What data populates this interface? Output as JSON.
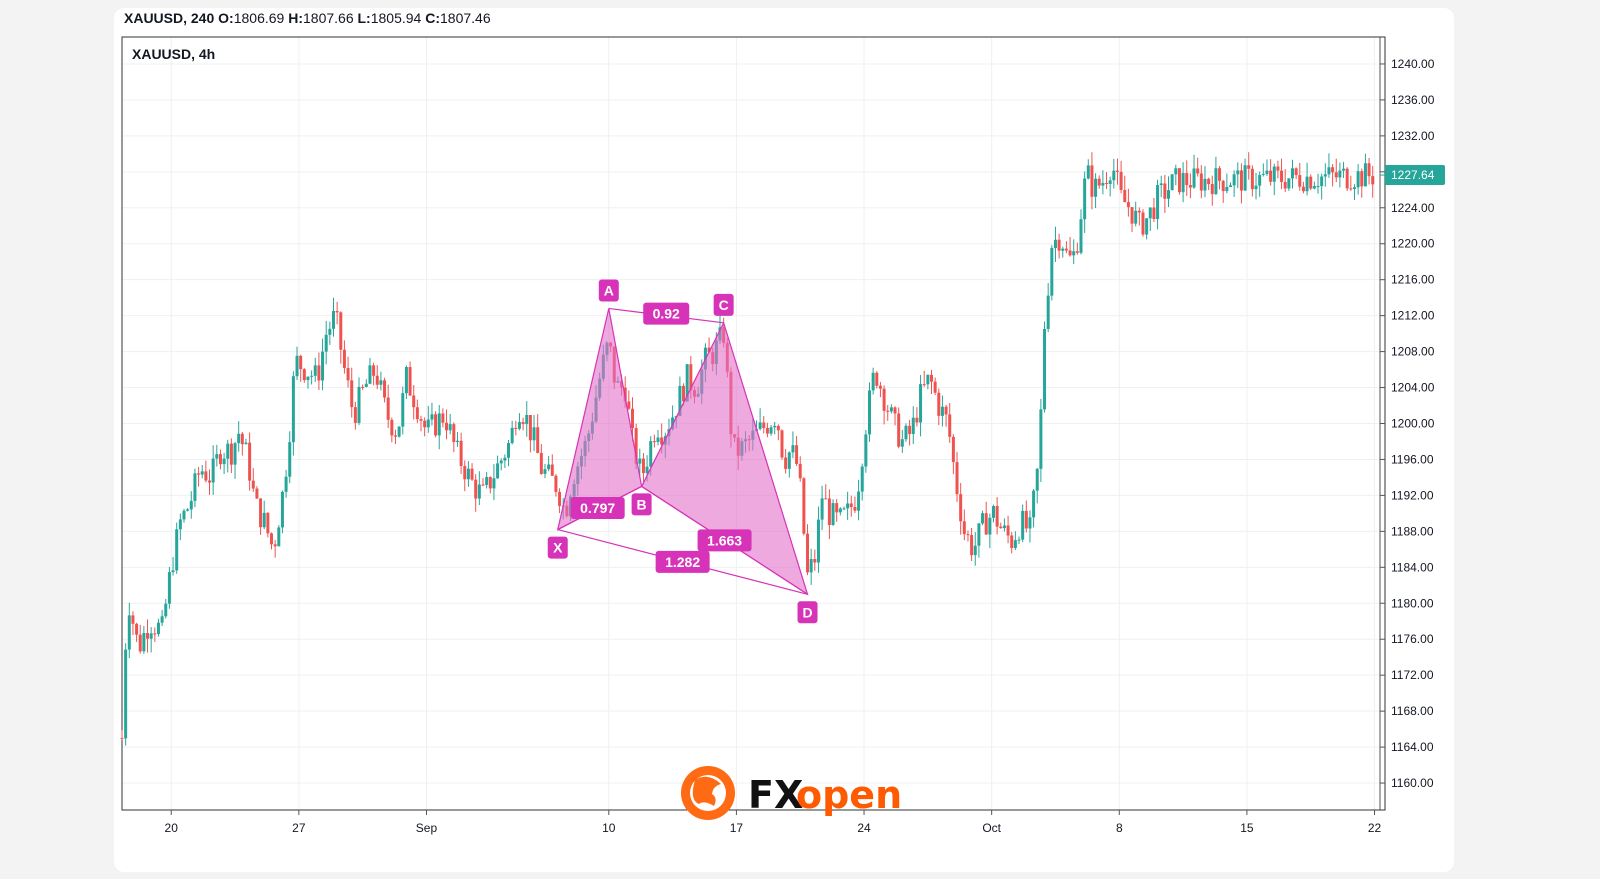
{
  "header": {
    "symbol_line": "XAUUSD, 240",
    "o_label": "O:",
    "o_value": "1806.69",
    "h_label": "H:",
    "h_value": "1807.66",
    "l_label": "L:",
    "l_value": "1805.94",
    "c_label": "C:",
    "c_value": "1807.46"
  },
  "chart_title": "XAUUSD, 4h",
  "brand": {
    "fx": "FX",
    "open": "open",
    "accent": "#ff5a00",
    "dark": "#111111"
  },
  "colors": {
    "up": "#26a69a",
    "down": "#ef5350",
    "pattern": "#d633b8",
    "pattern_fill": "#e26fc8",
    "price_tag": "#26a69a"
  },
  "chart_data": {
    "type": "candlestick",
    "title": "XAUUSD, 4h",
    "ylim": [
      1157,
      1243
    ],
    "y_ticks": [
      "1240.00",
      "1236.00",
      "1232.00",
      "1228.00",
      "1224.00",
      "1220.00",
      "1216.00",
      "1212.00",
      "1208.00",
      "1204.00",
      "1200.00",
      "1196.00",
      "1192.00",
      "1188.00",
      "1184.00",
      "1180.00",
      "1176.00",
      "1172.00",
      "1168.00",
      "1164.00",
      "1160.00"
    ],
    "x_ticks": [
      {
        "label": "20",
        "day": 20
      },
      {
        "label": "27",
        "day": 27
      },
      {
        "label": "Sep",
        "day": 34
      },
      {
        "label": "10",
        "day": 44
      },
      {
        "label": "17",
        "day": 51
      },
      {
        "label": "24",
        "day": 58
      },
      {
        "label": "Oct",
        "day": 65
      },
      {
        "label": "8",
        "day": 72
      },
      {
        "label": "15",
        "day": 79
      },
      {
        "label": "22",
        "day": 86
      }
    ],
    "x_range_days": [
      17.3,
      86.3
    ],
    "last_price": "1227.64",
    "last_price_value": 1227.64,
    "grid": true,
    "harmonic_pattern": {
      "points": [
        {
          "label": "X",
          "day": 41.2,
          "price": 1188.2
        },
        {
          "label": "A",
          "day": 44.0,
          "price": 1212.8
        },
        {
          "label": "B",
          "day": 45.8,
          "price": 1193.0
        },
        {
          "label": "C",
          "day": 50.3,
          "price": 1211.2
        },
        {
          "label": "D",
          "day": 54.9,
          "price": 1181.0
        }
      ],
      "ratios": [
        {
          "value": "0.92",
          "from": "A",
          "to": "C"
        },
        {
          "value": "0.797",
          "from": "X",
          "to": "B"
        },
        {
          "value": "1.663",
          "from": "B",
          "to": "D"
        },
        {
          "value": "1.282",
          "from": "X",
          "to": "D"
        }
      ]
    },
    "price_path": [
      [
        17.3,
        1165
      ],
      [
        17.6,
        1181
      ],
      [
        18.2,
        1175
      ],
      [
        18.8,
        1178
      ],
      [
        19.5,
        1177
      ],
      [
        20.0,
        1184
      ],
      [
        20.5,
        1189
      ],
      [
        21.0,
        1191
      ],
      [
        21.6,
        1195
      ],
      [
        22.2,
        1194
      ],
      [
        22.7,
        1197
      ],
      [
        23.3,
        1197
      ],
      [
        23.7,
        1199
      ],
      [
        24.2,
        1196
      ],
      [
        24.6,
        1191
      ],
      [
        25.1,
        1189
      ],
      [
        25.6,
        1186
      ],
      [
        26.1,
        1192
      ],
      [
        26.4,
        1197
      ],
      [
        26.8,
        1207
      ],
      [
        27.4,
        1206
      ],
      [
        28.0,
        1205
      ],
      [
        28.5,
        1210
      ],
      [
        29.0,
        1212
      ],
      [
        29.5,
        1206
      ],
      [
        30.0,
        1201
      ],
      [
        30.6,
        1204
      ],
      [
        31.2,
        1206
      ],
      [
        31.8,
        1201
      ],
      [
        32.4,
        1199
      ],
      [
        32.9,
        1205
      ],
      [
        33.5,
        1202
      ],
      [
        34.0,
        1199
      ],
      [
        34.5,
        1200
      ],
      [
        35.0,
        1201
      ],
      [
        35.6,
        1197
      ],
      [
        36.1,
        1195
      ],
      [
        36.6,
        1193
      ],
      [
        37.1,
        1192
      ],
      [
        37.6,
        1194
      ],
      [
        38.1,
        1196
      ],
      [
        38.6,
        1198
      ],
      [
        39.0,
        1202
      ],
      [
        39.4,
        1201
      ],
      [
        39.9,
        1198
      ],
      [
        40.3,
        1195
      ],
      [
        40.7,
        1194
      ],
      [
        41.2,
        1193
      ],
      [
        41.6,
        1190
      ],
      [
        42.0,
        1194
      ],
      [
        42.4,
        1196
      ],
      [
        42.8,
        1198
      ],
      [
        43.2,
        1202
      ],
      [
        43.6,
        1206
      ],
      [
        44.0,
        1209
      ],
      [
        44.4,
        1204
      ],
      [
        44.9,
        1204
      ],
      [
        45.3,
        1198
      ],
      [
        45.8,
        1194
      ],
      [
        46.2,
        1197
      ],
      [
        46.6,
        1200
      ],
      [
        47.0,
        1199
      ],
      [
        47.5,
        1201
      ],
      [
        47.9,
        1203
      ],
      [
        48.3,
        1205
      ],
      [
        48.8,
        1204
      ],
      [
        49.3,
        1207
      ],
      [
        49.8,
        1208
      ],
      [
        50.3,
        1210
      ],
      [
        50.8,
        1197
      ],
      [
        51.2,
        1197
      ],
      [
        51.7,
        1198
      ],
      [
        52.2,
        1199
      ],
      [
        52.7,
        1200
      ],
      [
        53.2,
        1201
      ],
      [
        53.6,
        1196
      ],
      [
        54.0,
        1197
      ],
      [
        54.4,
        1195
      ],
      [
        54.9,
        1183
      ],
      [
        55.3,
        1185
      ],
      [
        55.7,
        1192
      ],
      [
        56.1,
        1190
      ],
      [
        56.6,
        1189
      ],
      [
        57.1,
        1190
      ],
      [
        57.6,
        1192
      ],
      [
        58.1,
        1200
      ],
      [
        58.6,
        1206
      ],
      [
        59.1,
        1203
      ],
      [
        59.6,
        1200
      ],
      [
        60.1,
        1198
      ],
      [
        60.6,
        1199
      ],
      [
        61.1,
        1203
      ],
      [
        61.6,
        1205
      ],
      [
        62.1,
        1202
      ],
      [
        62.6,
        1200
      ],
      [
        63.0,
        1194
      ],
      [
        63.5,
        1188
      ],
      [
        64.0,
        1186
      ],
      [
        64.6,
        1189
      ],
      [
        65.1,
        1190
      ],
      [
        65.6,
        1188
      ],
      [
        66.1,
        1187
      ],
      [
        66.6,
        1189
      ],
      [
        67.1,
        1188
      ],
      [
        67.6,
        1196
      ],
      [
        67.9,
        1211
      ],
      [
        68.3,
        1220
      ],
      [
        68.8,
        1221
      ],
      [
        69.2,
        1218
      ],
      [
        69.6,
        1219
      ],
      [
        70.2,
        1228
      ],
      [
        70.6,
        1226
      ],
      [
        71.1,
        1227
      ],
      [
        71.6,
        1229
      ],
      [
        72.1,
        1225
      ],
      [
        72.6,
        1224
      ],
      [
        73.1,
        1222
      ],
      [
        73.6,
        1223
      ],
      [
        74.1,
        1225
      ],
      [
        74.6,
        1226
      ],
      [
        75.1,
        1227
      ],
      [
        75.6,
        1227
      ],
      [
        86.0,
        1227.6
      ]
    ]
  }
}
